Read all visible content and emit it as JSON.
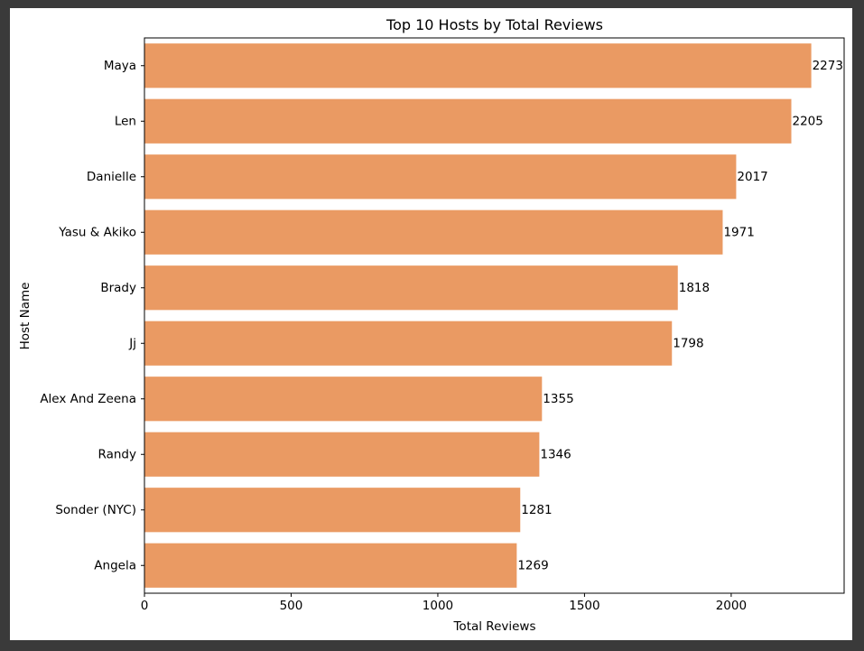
{
  "chart_data": {
    "type": "bar",
    "orientation": "horizontal",
    "title": "Top 10 Hosts by Total Reviews",
    "xlabel": "Total Reviews",
    "ylabel": "Host Name",
    "categories": [
      "Maya",
      "Len",
      "Danielle",
      "Yasu & Akiko",
      "Brady",
      "Jj",
      "Alex And Zeena",
      "Randy",
      "Sonder (NYC)",
      "Angela"
    ],
    "values": [
      2273,
      2205,
      2017,
      1971,
      1818,
      1798,
      1355,
      1346,
      1281,
      1269
    ],
    "xlim": [
      0,
      2385
    ],
    "xticks": [
      0,
      500,
      1000,
      1500,
      2000
    ],
    "bar_color": "#ea9a63",
    "grid": false,
    "data_labels": true
  }
}
